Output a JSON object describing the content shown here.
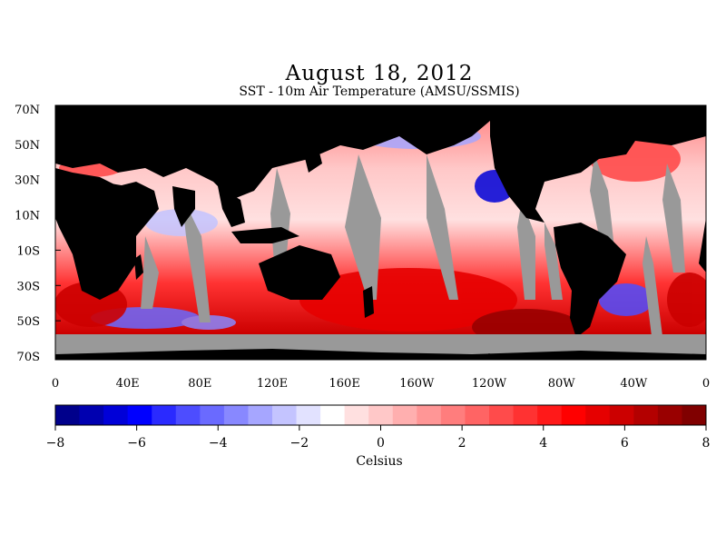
{
  "title": "August 18, 2012",
  "subtitle": "SST - 10m Air Temperature (AMSU/SSMIS)",
  "lat_labels": [
    "70N",
    "50N",
    "30N",
    "10N",
    "10S",
    "30S",
    "50S",
    "70S"
  ],
  "lon_labels": [
    "0",
    "40E",
    "80E",
    "120E",
    "160E",
    "160W",
    "120W",
    "80W",
    "40W",
    "0"
  ],
  "colorbar": {
    "unit": "Celsius",
    "tick_labels": [
      "−8",
      "−6",
      "−4",
      "−2",
      "0",
      "2",
      "4",
      "6",
      "8"
    ],
    "colors": [
      "#00008b",
      "#0000b0",
      "#0000d8",
      "#0000ff",
      "#2a2aff",
      "#4d4dff",
      "#6a6aff",
      "#8888ff",
      "#a6a6ff",
      "#c4c4ff",
      "#e2e2ff",
      "#ffffff",
      "#ffe0e0",
      "#ffc8c8",
      "#ffafaf",
      "#ff9696",
      "#ff7d7d",
      "#ff6464",
      "#ff4b4b",
      "#ff3232",
      "#ff1919",
      "#ff0000",
      "#e60000",
      "#cc0000",
      "#b30000",
      "#990000",
      "#800000"
    ]
  },
  "map_colors": {
    "land": "#000000",
    "no_data": "#999999",
    "ocean_warm": "#ff4040",
    "ocean_cool": "#6a6aff"
  }
}
